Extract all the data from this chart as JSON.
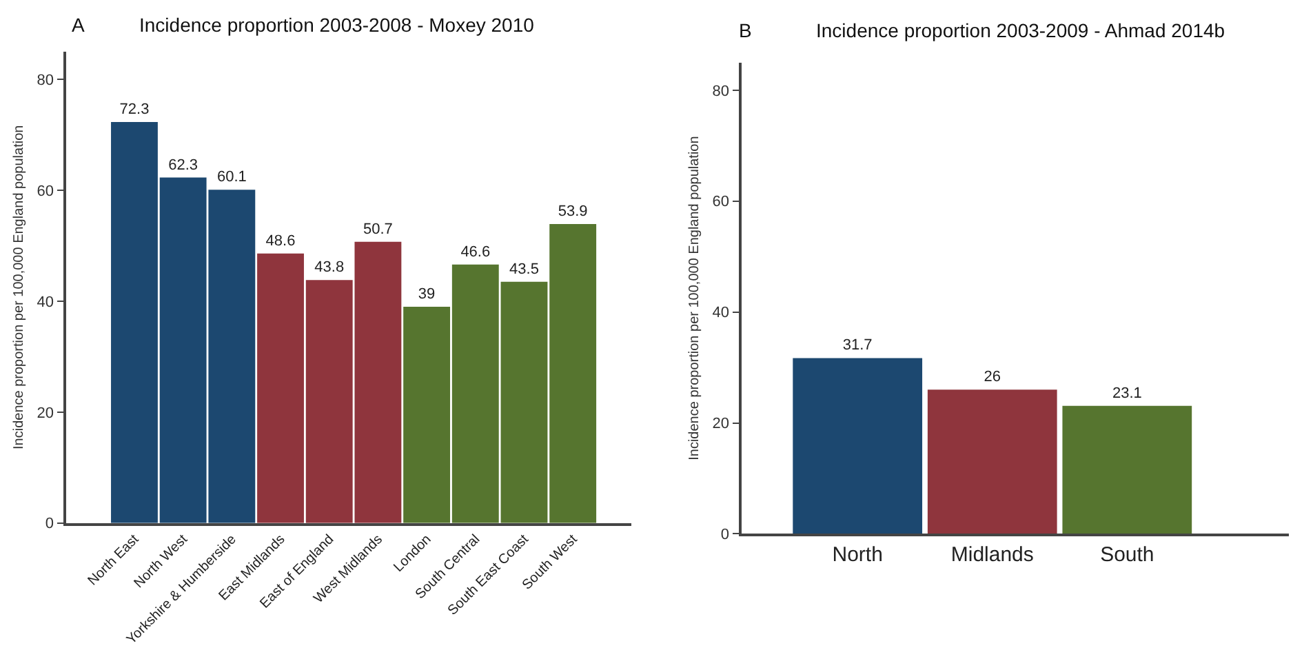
{
  "chart_data": [
    {
      "type": "bar",
      "title": "Incidence proportion 2003-2008 - Moxey 2010",
      "annotations": [
        "A"
      ],
      "ylabel": "Incidence proportion per 100,000 England population",
      "categories": [
        "North East",
        "North West",
        "Yorkshire & Humberside",
        "East Midlands",
        "East of England",
        "West Midlands",
        "London",
        "South Central",
        "South East Coast",
        "South West"
      ],
      "values": [
        72.3,
        62.3,
        60.1,
        48.6,
        43.8,
        50.7,
        39,
        46.6,
        43.5,
        53.9
      ],
      "colors": [
        "#1c4870",
        "#1c4870",
        "#1c4870",
        "#8f353d",
        "#8f353d",
        "#8f353d",
        "#56752f",
        "#56752f",
        "#56752f",
        "#56752f"
      ],
      "ylim": [
        0,
        85
      ],
      "yticks": [
        0,
        20,
        40,
        60,
        80
      ],
      "data_labels": true
    },
    {
      "type": "bar",
      "title": "Incidence proportion 2003-2009 - Ahmad 2014b",
      "annotations": [
        "B"
      ],
      "ylabel": "Incidence proportion per 100,000 England population",
      "categories": [
        "North",
        "Midlands",
        "South"
      ],
      "values": [
        31.7,
        26,
        23.1
      ],
      "colors": [
        "#1c4870",
        "#8f353d",
        "#56752f"
      ],
      "ylim": [
        0,
        85
      ],
      "yticks": [
        0,
        20,
        40,
        60,
        80
      ],
      "data_labels": true
    }
  ]
}
